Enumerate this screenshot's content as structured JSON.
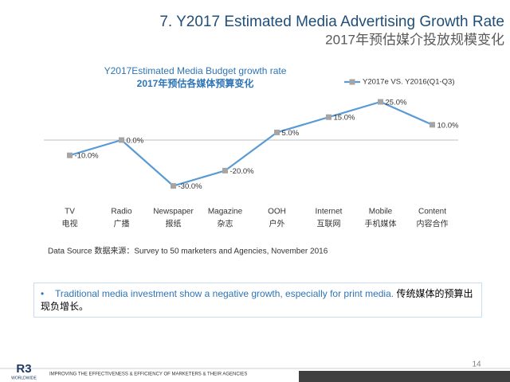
{
  "header": {
    "title": "7. Y2017 Estimated Media Advertising  Growth Rate",
    "subtitle": "2017年预估媒介投放规模变化"
  },
  "chart_data": {
    "type": "line",
    "title": "Y2017Estimated Media Budget growth rate",
    "subtitle": "2017年预估各媒体预算变化",
    "categories": [
      "TV",
      "Radio",
      "Newspaper",
      "Magazine",
      "OOH",
      "Internet",
      "Mobile",
      "Content"
    ],
    "categories_cn": [
      "电视",
      "广播",
      "报纸",
      "杂志",
      "户外",
      "互联网",
      "手机媒体",
      "内容合作"
    ],
    "series": [
      {
        "name": "Y2017e VS. Y2016(Q1-Q3)",
        "color": "#5b9bd5",
        "marker_color": "#a5a5a5",
        "values": [
          -10,
          0,
          -30,
          -20,
          5,
          15,
          25,
          10
        ],
        "value_labels": [
          "-10.0%",
          "0.0%",
          "-30.0%",
          "-20.0%",
          "5.0%",
          "15.0%",
          "25.0%",
          "10.0%"
        ]
      }
    ],
    "legend": "top-right"
  },
  "source": "Data Source 数据来源：Survey to 50 marketers and Agencies, November 2016",
  "note": {
    "bullet": "•",
    "text_en": "Traditional media investment show a negative growth, especially for print media.",
    "text_cn": "传统媒体的预算出现负增长。"
  },
  "footer": {
    "page": "14",
    "logo": "R3",
    "logo_sub": "WORLDWIDE",
    "tagline": "IMPROVING THE EFFECTIVENESS & EFFICIENCY OF MARKETERS & THEIR AGENCIES"
  }
}
